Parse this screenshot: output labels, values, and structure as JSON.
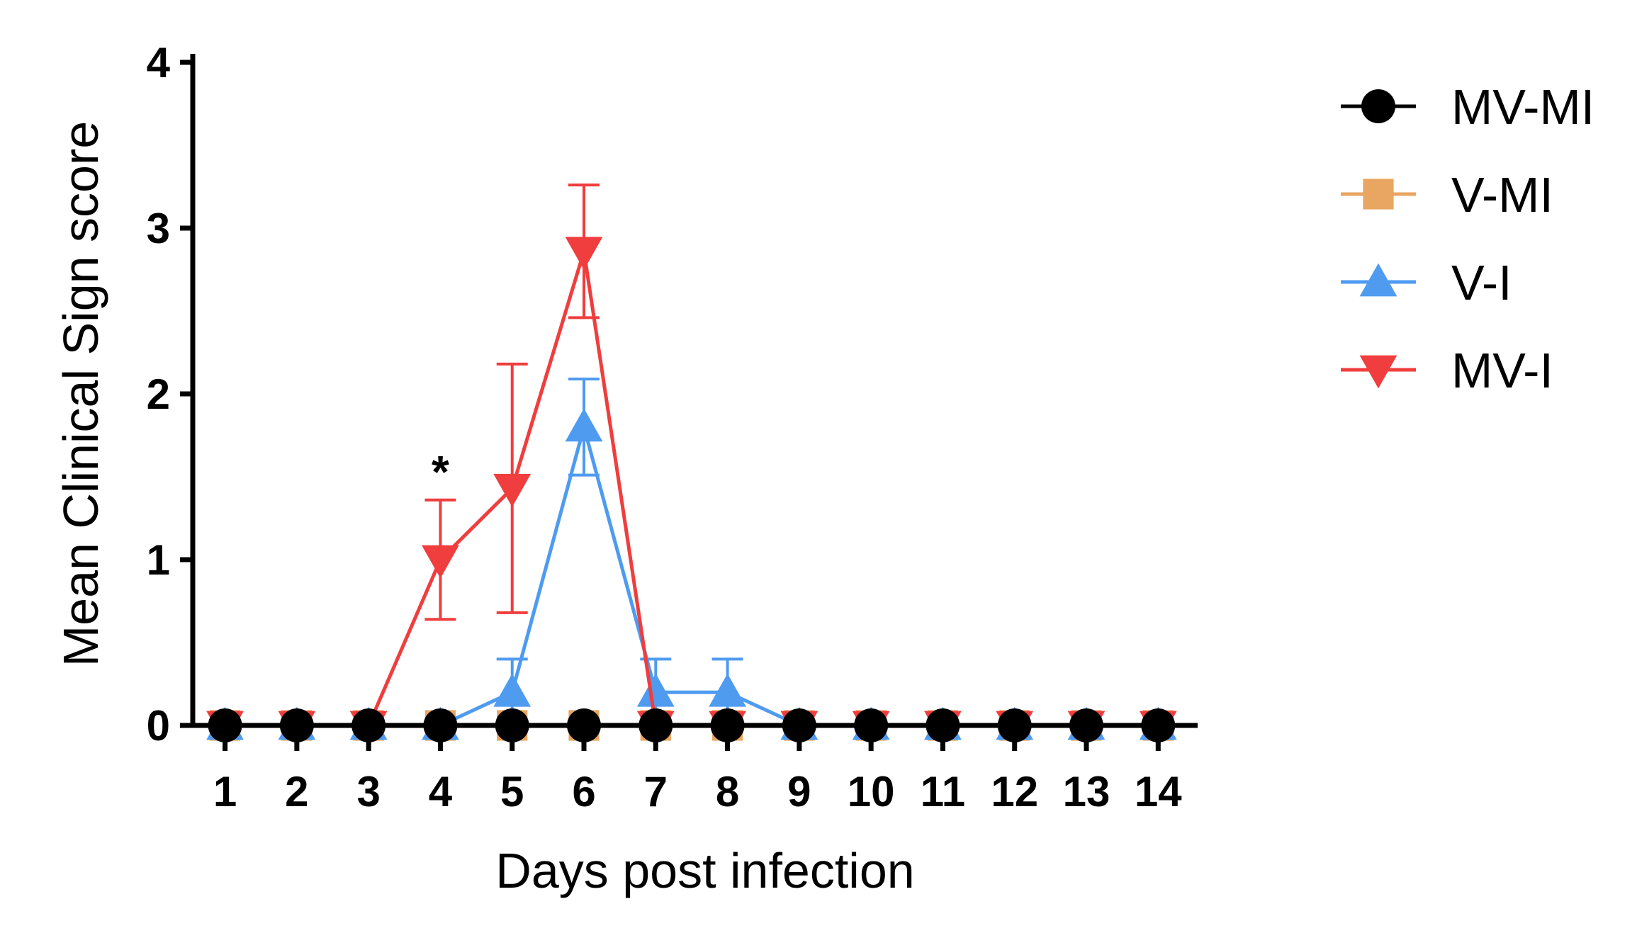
{
  "chart_data": {
    "type": "line",
    "xlabel": "Days post infection",
    "ylabel": "Mean Clinical Sign score",
    "x": [
      1,
      2,
      3,
      4,
      5,
      6,
      7,
      8,
      9,
      10,
      11,
      12,
      13,
      14
    ],
    "xlim": [
      0.55,
      14.55
    ],
    "ylim": [
      0,
      4
    ],
    "yticks": [
      0,
      1,
      2,
      3,
      4
    ],
    "grid": false,
    "legend_position": "right",
    "series": [
      {
        "name": "V-MI",
        "color": "#E8A662",
        "marker": "square",
        "values": [
          0,
          0,
          0,
          0,
          0,
          0,
          0,
          0,
          0,
          0,
          0,
          0,
          0,
          0
        ],
        "error": [
          0,
          0,
          0,
          0,
          0,
          0,
          0,
          0,
          0,
          0,
          0,
          0,
          0,
          0
        ]
      },
      {
        "name": "V-I",
        "color": "#4E9BF0",
        "marker": "triangle-up",
        "values": [
          0,
          0,
          0,
          0,
          0.2,
          1.8,
          0.2,
          0.2,
          0,
          0,
          0,
          0,
          0,
          0
        ],
        "error": [
          0,
          0,
          0,
          0,
          0.2,
          0.29,
          0.2,
          0.2,
          0,
          0,
          0,
          0,
          0,
          0
        ]
      },
      {
        "name": "MV-I",
        "color": "#F03D3D",
        "marker": "triangle-down",
        "values": [
          0,
          0,
          0,
          1.0,
          1.43,
          2.86,
          0,
          0,
          0,
          0,
          0,
          0,
          0,
          0
        ],
        "error": [
          0,
          0,
          0,
          0.36,
          0.75,
          0.4,
          0,
          0,
          0,
          0,
          0,
          0,
          0,
          0
        ]
      },
      {
        "name": "MV-MI",
        "color": "#000000",
        "marker": "circle",
        "values": [
          0,
          0,
          0,
          0,
          0,
          0,
          0,
          0,
          0,
          0,
          0,
          0,
          0,
          0
        ],
        "error": [
          0,
          0,
          0,
          0,
          0,
          0,
          0,
          0,
          0,
          0,
          0,
          0,
          0,
          0
        ]
      }
    ],
    "legend": [
      "MV-MI",
      "V-MI",
      "V-I",
      "MV-I"
    ],
    "annotations": [
      {
        "text": "*",
        "x": 4,
        "y": 1.36
      }
    ]
  }
}
